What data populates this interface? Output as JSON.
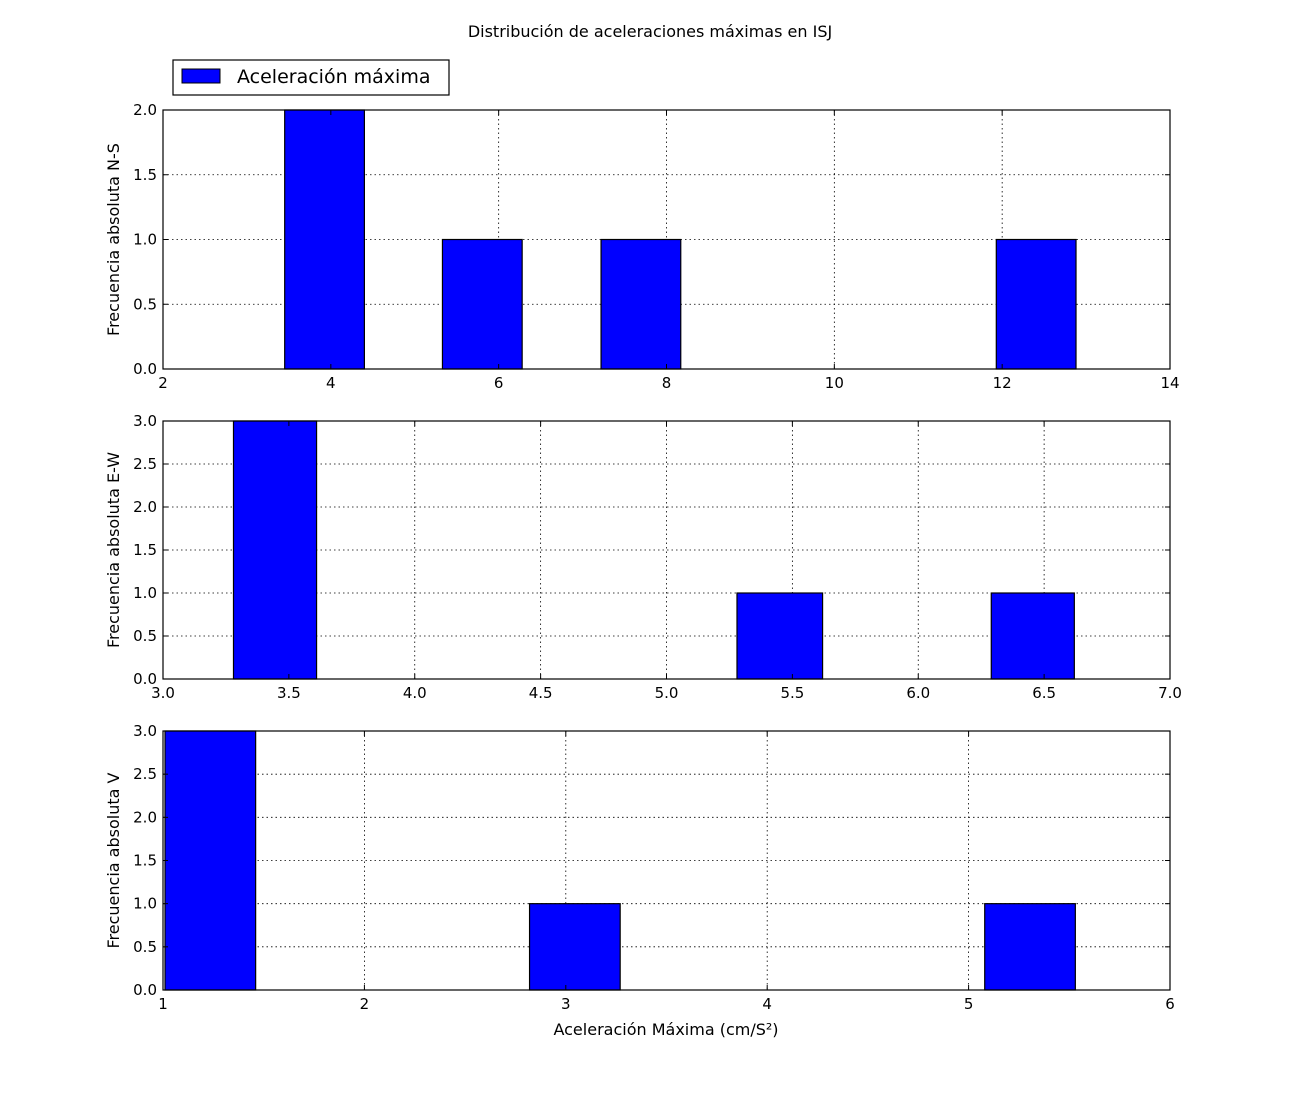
{
  "colors": {
    "bar": "#0000ff",
    "edge": "#000000",
    "background": "#ffffff"
  },
  "chart_data": {
    "type": "bar",
    "title": "Distribución de aceleraciones máximas en ISJ",
    "legend": {
      "labels": [
        "Aceleración máxima"
      ],
      "placement": "upper-left-outside"
    },
    "grid": true,
    "xlabel": "Aceleración Máxima (cm/S²)",
    "subplots": [
      {
        "ylabel": "Frecuencia absoluta N-S",
        "xlim": [
          2,
          14
        ],
        "ylim": [
          0,
          2
        ],
        "xticks": [
          "2",
          "4",
          "6",
          "8",
          "10",
          "12",
          "14"
        ],
        "yticks": [
          "0.0",
          "0.5",
          "1.0",
          "1.5",
          "2.0"
        ],
        "bars": [
          {
            "x0": 3.45,
            "x1": 4.4,
            "height": 2
          },
          {
            "x0": 5.33,
            "x1": 6.28,
            "height": 1
          },
          {
            "x0": 7.22,
            "x1": 8.17,
            "height": 1
          },
          {
            "x0": 11.93,
            "x1": 12.88,
            "height": 1
          }
        ]
      },
      {
        "ylabel": "Frecuencia absoluta E-W",
        "xlim": [
          3.0,
          7.0
        ],
        "ylim": [
          0,
          3
        ],
        "xticks": [
          "3.0",
          "3.5",
          "4.0",
          "4.5",
          "5.0",
          "5.5",
          "6.0",
          "6.5",
          "7.0"
        ],
        "yticks": [
          "0.0",
          "0.5",
          "1.0",
          "1.5",
          "2.0",
          "2.5",
          "3.0"
        ],
        "bars": [
          {
            "x0": 3.28,
            "x1": 3.61,
            "height": 3
          },
          {
            "x0": 5.28,
            "x1": 5.62,
            "height": 1
          },
          {
            "x0": 6.29,
            "x1": 6.62,
            "height": 1
          }
        ]
      },
      {
        "ylabel": "Frecuencia absoluta V",
        "xlim": [
          1,
          6
        ],
        "ylim": [
          0,
          3
        ],
        "xticks": [
          "1",
          "2",
          "3",
          "4",
          "5",
          "6"
        ],
        "yticks": [
          "0.0",
          "0.5",
          "1.0",
          "1.5",
          "2.0",
          "2.5",
          "3.0"
        ],
        "bars": [
          {
            "x0": 1.01,
            "x1": 1.46,
            "height": 3
          },
          {
            "x0": 2.82,
            "x1": 3.27,
            "height": 1
          },
          {
            "x0": 5.08,
            "x1": 5.53,
            "height": 1
          }
        ]
      }
    ]
  }
}
